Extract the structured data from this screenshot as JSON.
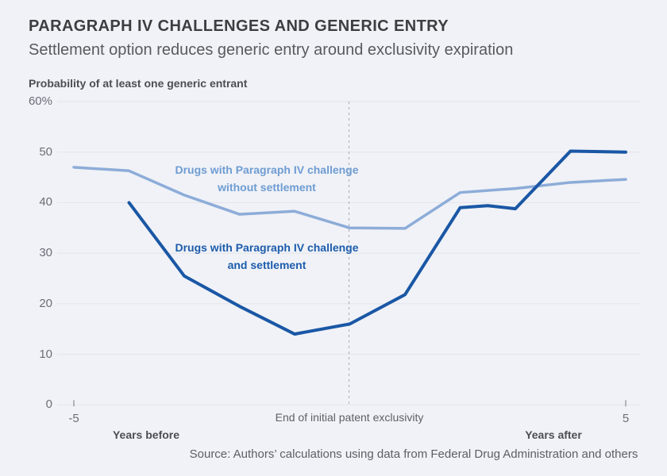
{
  "page": {
    "background_color": "#f0f2f7"
  },
  "header": {
    "title": "PARAGRAPH IV CHALLENGES AND GENERIC ENTRY",
    "subtitle": "Settlement option reduces generic entry around exclusivity expiration"
  },
  "chart_data": {
    "type": "line",
    "title": "PARAGRAPH IV CHALLENGES AND GENERIC ENTRY",
    "subtitle": "Settlement option reduces generic entry around exclusivity expiration",
    "ylabel": "Probability of at least one generic entrant",
    "xlabel": "",
    "ylim": [
      0,
      60
    ],
    "xlim": [
      -5.5,
      5.5
    ],
    "grid": true,
    "grid_color": "#e2e4ea",
    "yticks": [
      {
        "value": 60,
        "label": "60%"
      },
      {
        "value": 50,
        "label": "50"
      },
      {
        "value": 40,
        "label": "40"
      },
      {
        "value": 30,
        "label": "30"
      },
      {
        "value": 20,
        "label": "20"
      },
      {
        "value": 10,
        "label": "10"
      },
      {
        "value": 0,
        "label": "0"
      }
    ],
    "xticks": [
      {
        "value": -5,
        "label": "-5"
      },
      {
        "value": 5,
        "label": "5"
      }
    ],
    "reference_line": {
      "x": 0,
      "style": "dashed",
      "color": "#a8abb3",
      "label": "End of initial patent exclusivity"
    },
    "x_region_labels": {
      "before": "Years before",
      "after": "Years after"
    },
    "series": [
      {
        "name": "Drugs with Paragraph IV challenge without settlement",
        "label_lines": [
          "Drugs with Paragraph IV challenge",
          "without settlement"
        ],
        "color": "#8dacd8",
        "label_color": "#6f9cd2",
        "stroke_width": 3.5,
        "points": [
          [
            -5,
            47
          ],
          [
            -4,
            46.3
          ],
          [
            -3,
            41.5
          ],
          [
            -2,
            37.7
          ],
          [
            -1,
            38.3
          ],
          [
            0,
            35
          ],
          [
            1,
            34.9
          ],
          [
            2,
            42
          ],
          [
            3,
            42.8
          ],
          [
            4,
            44
          ],
          [
            5,
            44.6
          ]
        ]
      },
      {
        "name": "Drugs with Paragraph IV challenge and settlement",
        "label_lines": [
          "Drugs with Paragraph IV challenge",
          "and settlement"
        ],
        "color": "#1a57a5",
        "label_color": "#1d5cac",
        "stroke_width": 4,
        "points": [
          [
            -4,
            40
          ],
          [
            -3,
            25.5
          ],
          [
            -2,
            19.5
          ],
          [
            -1,
            14
          ],
          [
            0,
            16
          ],
          [
            1,
            21.8
          ],
          [
            2,
            39
          ],
          [
            2.5,
            39.4
          ],
          [
            3,
            38.8
          ],
          [
            4,
            50.2
          ],
          [
            5,
            50
          ]
        ]
      }
    ],
    "source": "Source: Authors’ calculations using data from Federal Drug Administration and others"
  }
}
